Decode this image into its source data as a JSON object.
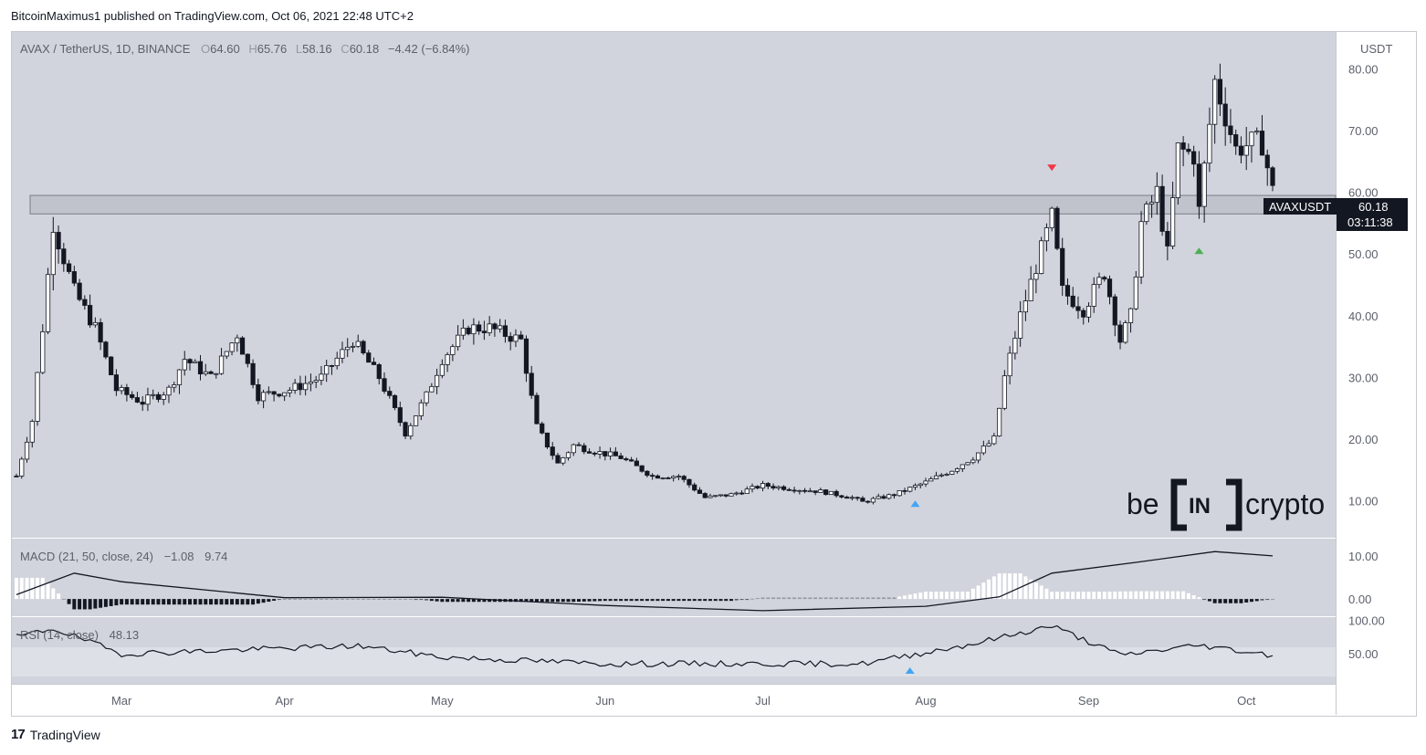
{
  "caption": "BitcoinMaximus1 published on TradingView.com, Oct 06, 2021 22:48 UTC+2",
  "footer": {
    "logo": "17",
    "brand": "TradingView"
  },
  "legend": {
    "symbol": "AVAX / TetherUS, 1D, BINANCE",
    "open_label": "O",
    "open": "64.60",
    "high_label": "H",
    "high": "65.76",
    "low_label": "L",
    "low": "58.16",
    "close_label": "C",
    "close": "60.18",
    "change": "−4.42 (−6.84%)"
  },
  "price_axis": {
    "unit": "USDT",
    "ticks": [
      "80.00",
      "70.00",
      "60.00",
      "50.00",
      "40.00",
      "30.00",
      "20.00",
      "10.00"
    ],
    "tag_symbol": "AVAXUSDT",
    "tag_price": "60.18",
    "tag_countdown": "03:11:38"
  },
  "macd": {
    "label": "MACD (21, 50, close, 24)",
    "value1": "−1.08",
    "value2": "9.74",
    "ticks": [
      "10.00",
      "0.00"
    ]
  },
  "rsi": {
    "label": "RSI (14, close)",
    "value": "48.13",
    "ticks": [
      "100.00",
      "50.00"
    ]
  },
  "time_axis": {
    "labels": [
      "Mar",
      "Apr",
      "May",
      "Jun",
      "Jul",
      "Aug",
      "Sep",
      "Oct"
    ]
  },
  "watermark": {
    "left": "be",
    "middle": "IN",
    "right": "crypto"
  },
  "colors": {
    "background": "#d1d4dc",
    "up": "#ffffff",
    "down": "#131722",
    "zone": "#b2b5be",
    "bear_arrow": "#f23645",
    "bull_arrow": "#4caf50",
    "rsi_arrow": "#42a5f5"
  },
  "chart_data": {
    "type": "candlestick",
    "title": "AVAX / TetherUS, 1D, BINANCE",
    "x_range": [
      "2021-02-09",
      "2021-10-06"
    ],
    "ylim": [
      4,
      86
    ],
    "resistance_zone": [
      56.5,
      59.5
    ],
    "trend_points": [
      [
        "2021-02-09",
        14
      ],
      [
        "2021-02-12",
        23
      ],
      [
        "2021-02-14",
        38
      ],
      [
        "2021-02-16",
        55
      ],
      [
        "2021-02-17",
        52
      ],
      [
        "2021-02-20",
        44
      ],
      [
        "2021-02-24",
        38
      ],
      [
        "2021-02-28",
        28
      ],
      [
        "2021-03-05",
        26
      ],
      [
        "2021-03-10",
        28
      ],
      [
        "2021-03-13",
        33
      ],
      [
        "2021-03-18",
        30
      ],
      [
        "2021-03-23",
        37
      ],
      [
        "2021-03-27",
        27
      ],
      [
        "2021-04-02",
        28
      ],
      [
        "2021-04-08",
        30
      ],
      [
        "2021-04-14",
        36
      ],
      [
        "2021-04-19",
        30
      ],
      [
        "2021-04-24",
        21
      ],
      [
        "2021-04-28",
        27
      ],
      [
        "2021-05-01",
        33
      ],
      [
        "2021-05-06",
        38
      ],
      [
        "2021-05-10",
        38
      ],
      [
        "2021-05-16",
        36
      ],
      [
        "2021-05-19",
        22
      ],
      [
        "2021-05-23",
        16
      ],
      [
        "2021-05-26",
        19
      ],
      [
        "2021-05-30",
        18
      ],
      [
        "2021-06-04",
        17
      ],
      [
        "2021-06-10",
        14
      ],
      [
        "2021-06-15",
        14
      ],
      [
        "2021-06-20",
        10.5
      ],
      [
        "2021-06-25",
        11
      ],
      [
        "2021-07-01",
        12.5
      ],
      [
        "2021-07-06",
        12
      ],
      [
        "2021-07-12",
        11.5
      ],
      [
        "2021-07-18",
        10.5
      ],
      [
        "2021-07-20",
        9.8
      ],
      [
        "2021-07-26",
        11
      ],
      [
        "2021-08-01",
        13
      ],
      [
        "2021-08-06",
        15
      ],
      [
        "2021-08-10",
        17
      ],
      [
        "2021-08-14",
        20
      ],
      [
        "2021-08-16",
        30
      ],
      [
        "2021-08-19",
        40
      ],
      [
        "2021-08-22",
        48
      ],
      [
        "2021-08-25",
        56
      ],
      [
        "2021-08-27",
        44
      ],
      [
        "2021-08-31",
        41
      ],
      [
        "2021-09-04",
        47
      ],
      [
        "2021-09-07",
        36
      ],
      [
        "2021-09-09",
        40
      ],
      [
        "2021-09-11",
        55
      ],
      [
        "2021-09-14",
        60
      ],
      [
        "2021-09-16",
        50
      ],
      [
        "2021-09-18",
        67
      ],
      [
        "2021-09-21",
        66
      ],
      [
        "2021-09-22",
        57
      ],
      [
        "2021-09-25",
        78
      ],
      [
        "2021-09-29",
        67
      ],
      [
        "2021-10-02",
        68
      ],
      [
        "2021-10-04",
        68
      ],
      [
        "2021-10-06",
        60.18
      ]
    ],
    "macd_line": [
      [
        "2021-02-09",
        1
      ],
      [
        "2021-02-20",
        6
      ],
      [
        "2021-03-01",
        4
      ],
      [
        "2021-04-01",
        0.3
      ],
      [
        "2021-05-01",
        0.4
      ],
      [
        "2021-06-01",
        -1.5
      ],
      [
        "2021-07-01",
        -2.7
      ],
      [
        "2021-08-01",
        -1.7
      ],
      [
        "2021-08-15",
        0.5
      ],
      [
        "2021-08-25",
        6
      ],
      [
        "2021-09-10",
        8.5
      ],
      [
        "2021-09-25",
        11
      ],
      [
        "2021-10-06",
        10
      ]
    ],
    "rsi_line": [
      [
        "2021-02-09",
        75
      ],
      [
        "2021-02-16",
        88
      ],
      [
        "2021-03-01",
        50
      ],
      [
        "2021-04-15",
        62
      ],
      [
        "2021-05-01",
        45
      ],
      [
        "2021-06-01",
        35
      ],
      [
        "2021-07-20",
        35
      ],
      [
        "2021-08-10",
        65
      ],
      [
        "2021-08-25",
        92
      ],
      [
        "2021-09-07",
        48
      ],
      [
        "2021-09-22",
        63
      ],
      [
        "2021-10-06",
        48.13
      ]
    ],
    "annotations": [
      {
        "type": "bearish-arrow",
        "date": "2021-08-25"
      },
      {
        "type": "bullish-arrow",
        "date": "2021-09-22"
      },
      {
        "type": "bullish-arrow",
        "date": "2021-07-30"
      },
      {
        "type": "rsi-bullish-arrow",
        "date": "2021-07-29"
      }
    ]
  }
}
